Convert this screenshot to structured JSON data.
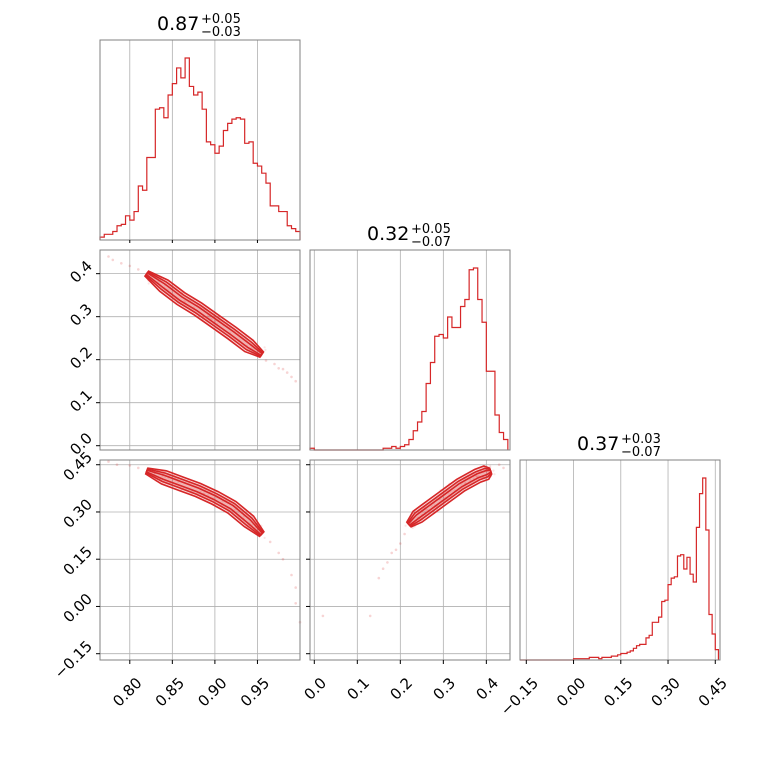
{
  "chart_data": {
    "type": "corner",
    "color": "#d62728",
    "grid": true,
    "parameters": [
      {
        "index": 0,
        "title": {
          "median": "0.87",
          "plus": "+0.05",
          "minus": "−0.03"
        },
        "range": [
          0.765,
          1.0
        ],
        "ticks": [
          {
            "v": 0.8,
            "label": "0.80"
          },
          {
            "v": 0.85,
            "label": "0.85"
          },
          {
            "v": 0.9,
            "label": "0.90"
          },
          {
            "v": 0.95,
            "label": "0.95"
          }
        ]
      },
      {
        "index": 1,
        "title": {
          "median": "0.32",
          "plus": "+0.05",
          "minus": "−0.07"
        },
        "range": [
          -0.01,
          0.455
        ],
        "ticks": [
          {
            "v": 0.0,
            "label": "0.0"
          },
          {
            "v": 0.1,
            "label": "0.1"
          },
          {
            "v": 0.2,
            "label": "0.2"
          },
          {
            "v": 0.3,
            "label": "0.3"
          },
          {
            "v": 0.4,
            "label": "0.4"
          }
        ]
      },
      {
        "index": 2,
        "title": {
          "median": "0.37",
          "plus": "+0.03",
          "minus": "−0.07"
        },
        "range": [
          -0.17,
          0.465
        ],
        "ticks": [
          {
            "v": -0.15,
            "label": "−0.15"
          },
          {
            "v": 0.0,
            "label": "0.00"
          },
          {
            "v": 0.15,
            "label": "0.15"
          },
          {
            "v": 0.3,
            "label": "0.30"
          },
          {
            "v": 0.45,
            "label": "0.45"
          }
        ]
      }
    ],
    "histograms": [
      {
        "param": 0,
        "bins": [
          0.765,
          0.77,
          0.775,
          0.78,
          0.785,
          0.79,
          0.795,
          0.8,
          0.805,
          0.81,
          0.815,
          0.82,
          0.825,
          0.83,
          0.835,
          0.84,
          0.845,
          0.85,
          0.855,
          0.86,
          0.865,
          0.87,
          0.875,
          0.88,
          0.885,
          0.89,
          0.895,
          0.9,
          0.905,
          0.91,
          0.915,
          0.92,
          0.925,
          0.93,
          0.935,
          0.94,
          0.945,
          0.95,
          0.955,
          0.96,
          0.965,
          0.97,
          0.975,
          0.98,
          0.985,
          0.99,
          0.995,
          1.0
        ],
        "counts": [
          2,
          4,
          4,
          6,
          10,
          11,
          17,
          14,
          20,
          38,
          35,
          58,
          58,
          92,
          93,
          86,
          102,
          110,
          121,
          114,
          128,
          108,
          102,
          104,
          92,
          69,
          67,
          61,
          66,
          77,
          82,
          85,
          86,
          85,
          68,
          69,
          54,
          52,
          47,
          40,
          24,
          24,
          20,
          20,
          10,
          8,
          6
        ]
      },
      {
        "param": 1,
        "bins": [
          -0.01,
          0.0,
          0.01,
          0.02,
          0.03,
          0.04,
          0.05,
          0.06,
          0.07,
          0.08,
          0.09,
          0.1,
          0.11,
          0.12,
          0.13,
          0.14,
          0.15,
          0.16,
          0.17,
          0.18,
          0.19,
          0.2,
          0.21,
          0.22,
          0.23,
          0.24,
          0.25,
          0.26,
          0.27,
          0.28,
          0.29,
          0.3,
          0.31,
          0.32,
          0.33,
          0.34,
          0.35,
          0.36,
          0.37,
          0.38,
          0.39,
          0.4,
          0.41,
          0.42,
          0.43,
          0.44,
          0.45
        ],
        "counts": [
          1,
          0,
          0,
          0,
          0,
          0,
          0,
          0,
          0,
          0,
          0,
          0,
          0,
          0,
          0,
          0,
          0,
          1,
          1,
          2,
          1,
          2,
          3,
          6,
          11,
          16,
          22,
          38,
          50,
          65,
          66,
          64,
          76,
          70,
          70,
          82,
          86,
          103,
          104,
          86,
          73,
          45,
          45,
          20,
          10,
          6
        ]
      },
      {
        "param": 2,
        "bins": [
          -0.17,
          -0.16,
          -0.15,
          -0.14,
          -0.13,
          -0.12,
          -0.11,
          -0.1,
          -0.09,
          -0.08,
          -0.07,
          -0.06,
          -0.05,
          -0.04,
          -0.03,
          -0.02,
          -0.01,
          0.0,
          0.01,
          0.02,
          0.03,
          0.04,
          0.05,
          0.06,
          0.07,
          0.08,
          0.09,
          0.1,
          0.11,
          0.12,
          0.13,
          0.14,
          0.15,
          0.16,
          0.17,
          0.18,
          0.19,
          0.2,
          0.21,
          0.22,
          0.23,
          0.24,
          0.25,
          0.26,
          0.27,
          0.28,
          0.29,
          0.3,
          0.31,
          0.32,
          0.33,
          0.34,
          0.35,
          0.36,
          0.37,
          0.38,
          0.39,
          0.4,
          0.41,
          0.42,
          0.43,
          0.44,
          0.45,
          0.46
        ],
        "counts": [
          0,
          0,
          0,
          0,
          0,
          0,
          0,
          0,
          0,
          0,
          0,
          0,
          0,
          0,
          0,
          0,
          0,
          1,
          1,
          1,
          1,
          1,
          2,
          2,
          2,
          1,
          2,
          2,
          2,
          3,
          3,
          4,
          5,
          5,
          6,
          7,
          9,
          11,
          12,
          12,
          17,
          19,
          29,
          29,
          33,
          45,
          46,
          58,
          63,
          64,
          80,
          81,
          70,
          79,
          66,
          60,
          102,
          128,
          140,
          100,
          35,
          20,
          8
        ]
      }
    ],
    "scatter_panels": [
      {
        "x_param": 0,
        "y_param": 1,
        "ridge": [
          [
            0.82,
            0.4
          ],
          [
            0.84,
            0.372
          ],
          [
            0.86,
            0.342
          ],
          [
            0.88,
            0.318
          ],
          [
            0.9,
            0.29
          ],
          [
            0.92,
            0.262
          ],
          [
            0.94,
            0.232
          ],
          [
            0.955,
            0.212
          ]
        ],
        "outliers": [
          [
            0.775,
            0.44
          ],
          [
            0.78,
            0.432
          ],
          [
            0.79,
            0.424
          ],
          [
            0.8,
            0.418
          ],
          [
            0.81,
            0.41
          ],
          [
            0.96,
            0.198
          ],
          [
            0.97,
            0.19
          ],
          [
            0.975,
            0.18
          ],
          [
            0.98,
            0.178
          ],
          [
            0.985,
            0.17
          ],
          [
            0.99,
            0.16
          ],
          [
            0.995,
            0.15
          ]
        ]
      },
      {
        "x_param": 0,
        "y_param": 2,
        "ridge": [
          [
            0.82,
            0.43
          ],
          [
            0.84,
            0.41
          ],
          [
            0.86,
            0.39
          ],
          [
            0.88,
            0.37
          ],
          [
            0.9,
            0.345
          ],
          [
            0.92,
            0.315
          ],
          [
            0.94,
            0.27
          ],
          [
            0.955,
            0.23
          ]
        ],
        "outliers": [
          [
            0.775,
            0.46
          ],
          [
            0.785,
            0.45
          ],
          [
            0.8,
            0.448
          ],
          [
            0.81,
            0.44
          ],
          [
            0.965,
            0.205
          ],
          [
            0.975,
            0.17
          ],
          [
            0.98,
            0.15
          ],
          [
            0.99,
            0.1
          ],
          [
            0.995,
            0.06
          ],
          [
            0.995,
            0.01
          ],
          [
            1.0,
            -0.05
          ]
        ]
      },
      {
        "x_param": 1,
        "y_param": 2,
        "ridge": [
          [
            0.22,
            0.26
          ],
          [
            0.24,
            0.285
          ],
          [
            0.26,
            0.305
          ],
          [
            0.28,
            0.325
          ],
          [
            0.3,
            0.345
          ],
          [
            0.32,
            0.365
          ],
          [
            0.34,
            0.385
          ],
          [
            0.36,
            0.4
          ],
          [
            0.38,
            0.415
          ],
          [
            0.4,
            0.425
          ],
          [
            0.41,
            0.43
          ]
        ],
        "outliers": [
          [
            0.02,
            -0.03
          ],
          [
            0.13,
            -0.03
          ],
          [
            0.15,
            0.09
          ],
          [
            0.16,
            0.12
          ],
          [
            0.17,
            0.14
          ],
          [
            0.18,
            0.17
          ],
          [
            0.19,
            0.18
          ],
          [
            0.2,
            0.2
          ],
          [
            0.21,
            0.23
          ],
          [
            0.43,
            0.45
          ],
          [
            0.44,
            0.44
          ]
        ]
      }
    ]
  }
}
